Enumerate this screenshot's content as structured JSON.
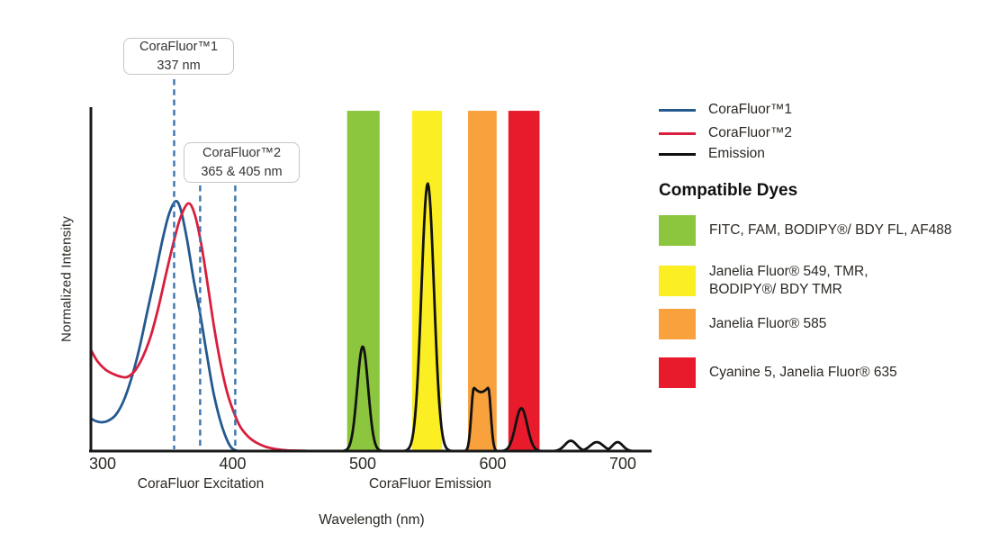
{
  "chart_data": {
    "type": "line",
    "title": "",
    "xlabel": "Wavelength (nm)",
    "ylabel": "Normalized Intensity",
    "axis_color": "#1a1a1a",
    "tick_color": "#2b2823",
    "marker_line_color": "#3a74ad",
    "x_axis": {
      "ticks": [
        300,
        400,
        500,
        600,
        700
      ],
      "unit": "nm",
      "range_nm": [
        291,
        721
      ]
    },
    "y_axis": {
      "range": [
        0,
        1
      ],
      "gridlines": false
    },
    "section_labels": [
      {
        "text": "CoraFluor Excitation"
      },
      {
        "text": "CoraFluor Emission"
      }
    ],
    "bands": [
      {
        "key": "green",
        "from_nm": 488,
        "to_nm": 513,
        "top": 0.992,
        "color": "#8cc63f",
        "dyes": "FITC, FAM, BODIPY®/ BDY FL, AF488"
      },
      {
        "key": "yellow",
        "from_nm": 538,
        "to_nm": 561,
        "top": 0.992,
        "color": "#fbee23",
        "dyes": "Janelia Fluor® 549, TMR, BODIPY®/ BDY TMR"
      },
      {
        "key": "orange",
        "from_nm": 581,
        "to_nm": 603,
        "top": 0.992,
        "color": "#f9a13c",
        "dyes": "Janelia Fluor® 585"
      },
      {
        "key": "red",
        "from_nm": 612,
        "to_nm": 636,
        "top": 0.992,
        "color": "#e81b2c",
        "dyes": "Cyanine 5, Janelia Fluor® 635"
      }
    ],
    "series": [
      {
        "name": "CoraFluor™1",
        "kind": "excitation",
        "color": "#23598f",
        "points": [
          [
            291,
            0.095
          ],
          [
            295,
            0.087
          ],
          [
            299,
            0.084
          ],
          [
            304,
            0.088
          ],
          [
            310,
            0.105
          ],
          [
            316,
            0.145
          ],
          [
            322,
            0.21
          ],
          [
            328,
            0.295
          ],
          [
            334,
            0.4
          ],
          [
            340,
            0.505
          ],
          [
            346,
            0.615
          ],
          [
            351,
            0.69
          ],
          [
            356,
            0.728
          ],
          [
            360,
            0.705
          ],
          [
            365,
            0.615
          ],
          [
            370,
            0.5
          ],
          [
            375,
            0.4
          ],
          [
            380,
            0.285
          ],
          [
            385,
            0.175
          ],
          [
            390,
            0.095
          ],
          [
            394,
            0.048
          ],
          [
            398,
            0.015
          ],
          [
            401,
            0.004
          ],
          [
            404,
            0
          ]
        ]
      },
      {
        "name": "CoraFluor™2",
        "kind": "excitation",
        "color": "#d71f3d",
        "points": [
          [
            291,
            0.295
          ],
          [
            296,
            0.262
          ],
          [
            302,
            0.238
          ],
          [
            308,
            0.225
          ],
          [
            314,
            0.217
          ],
          [
            319,
            0.216
          ],
          [
            325,
            0.235
          ],
          [
            331,
            0.275
          ],
          [
            337,
            0.335
          ],
          [
            343,
            0.42
          ],
          [
            349,
            0.52
          ],
          [
            355,
            0.615
          ],
          [
            360,
            0.682
          ],
          [
            366,
            0.722
          ],
          [
            371,
            0.688
          ],
          [
            376,
            0.6
          ],
          [
            381,
            0.48
          ],
          [
            386,
            0.355
          ],
          [
            391,
            0.25
          ],
          [
            396,
            0.168
          ],
          [
            401,
            0.112
          ],
          [
            406,
            0.07
          ],
          [
            412,
            0.042
          ],
          [
            418,
            0.025
          ],
          [
            425,
            0.013
          ],
          [
            433,
            0.006
          ],
          [
            442,
            0.002
          ],
          [
            452,
            0.001
          ],
          [
            460,
            0
          ]
        ]
      },
      {
        "name": "Emission",
        "kind": "emission",
        "color": "#111111",
        "domain_nm": [
          478,
          719
        ],
        "gaussians": [
          {
            "c": 500,
            "s": 4.2,
            "h": 0.305
          },
          {
            "c": 550,
            "s": 4.8,
            "h": 0.78
          },
          {
            "c": 622,
            "s": 4.5,
            "h": 0.125
          },
          {
            "c": 660,
            "s": 4.5,
            "h": 0.03
          },
          {
            "c": 680,
            "s": 5.0,
            "h": 0.026
          },
          {
            "c": 696,
            "s": 4.0,
            "h": 0.026
          }
        ],
        "plateaus": [
          {
            "from": 585.5,
            "to": 596.5,
            "h": 0.185,
            "edge": 2.0,
            "dip": 0.013
          }
        ]
      }
    ],
    "marker_lines": [
      {
        "nm": 355,
        "labeled_value_nm": 337
      },
      {
        "nm": 375,
        "labeled_value_nm": 365
      },
      {
        "nm": 402,
        "labeled_value_nm": 405
      }
    ],
    "annotations": [
      {
        "line1": "CoraFluor™1",
        "line2": "337 nm"
      },
      {
        "line1": "CoraFluor™2",
        "line2": "365 & 405 nm"
      }
    ]
  },
  "legend": {
    "items": [
      {
        "label": "CoraFluor™1",
        "color": "#23598f"
      },
      {
        "label": "CoraFluor™2",
        "color": "#d71f3d"
      },
      {
        "label": "Emission",
        "color": "#111111"
      }
    ]
  },
  "compatible_dyes": {
    "heading": "Compatible Dyes",
    "items": [
      {
        "color": "#8cc63f",
        "lines": [
          "FITC, FAM, BODIPY®/ BDY FL, AF488"
        ]
      },
      {
        "color": "#fbee23",
        "lines": [
          "Janelia Fluor® 549, TMR,",
          "BODIPY®/ BDY TMR"
        ]
      },
      {
        "color": "#f9a13c",
        "lines": [
          "Janelia Fluor® 585"
        ]
      },
      {
        "color": "#e81b2c",
        "lines": [
          "Cyanine 5, Janelia Fluor® 635"
        ]
      }
    ]
  }
}
